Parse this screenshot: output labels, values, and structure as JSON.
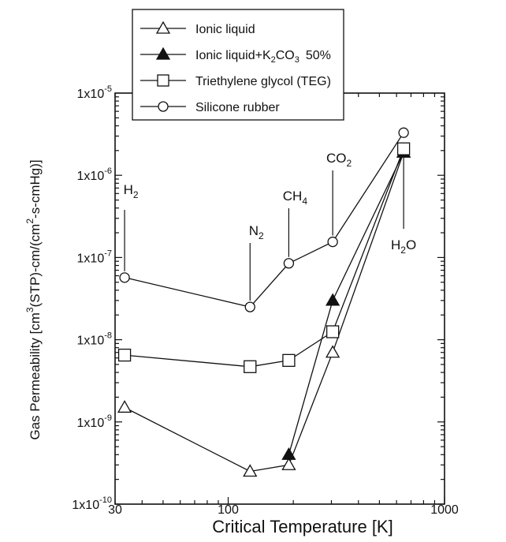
{
  "chart_data": {
    "type": "line",
    "xlabel": "Critical Temperature [K]",
    "ylabel": "Gas Permeability [cm3(STP)-cm/(cm2-s-cmHg)]",
    "x_scale": "log",
    "y_scale": "log",
    "xlim": [
      30,
      1000
    ],
    "ylim": [
      1e-10,
      1e-05
    ],
    "x_ticks": [
      {
        "value": 30,
        "label": "30"
      },
      {
        "value": 100,
        "label": "100"
      },
      {
        "value": 1000,
        "label": "1000"
      }
    ],
    "y_ticks": [
      {
        "value": 1e-10,
        "mant": "1x10",
        "exp": "-10"
      },
      {
        "value": 1e-09,
        "mant": "1x10",
        "exp": "-9"
      },
      {
        "value": 1e-08,
        "mant": "1x10",
        "exp": "-8"
      },
      {
        "value": 1e-07,
        "mant": "1x10",
        "exp": "-7"
      },
      {
        "value": 1e-06,
        "mant": "1x10",
        "exp": "-6"
      },
      {
        "value": 1e-05,
        "mant": "1x10",
        "exp": "-5"
      }
    ],
    "grid": false,
    "legend_position": "top-left",
    "gas_labels": [
      {
        "id": "h2",
        "base": "H",
        "sub": "2",
        "x": 33.2
      },
      {
        "id": "n2",
        "base": "N",
        "sub": "2",
        "x": 126.2
      },
      {
        "id": "ch4",
        "base": "CH",
        "sub": "4",
        "x": 190.6
      },
      {
        "id": "co2",
        "base": "CO",
        "sub": "2",
        "x": 304.2
      },
      {
        "id": "h2o",
        "base": "H",
        "sub": "2",
        "suffix": "O",
        "x": 647.1
      }
    ],
    "series": [
      {
        "name": "Ionic liquid",
        "marker": "triangle-open",
        "x": [
          33.2,
          126.2,
          190.6,
          304.2,
          647.1
        ],
        "y": [
          1.5e-09,
          2.5e-10,
          3e-10,
          7e-09,
          1.9e-06
        ]
      },
      {
        "name": "Ionic liquid+K2CO3 50%",
        "marker": "triangle-filled",
        "x": [
          190.6,
          304.2,
          647.1
        ],
        "y": [
          4e-10,
          3e-08,
          1.9e-06
        ]
      },
      {
        "name": "Triethylene glycol (TEG)",
        "marker": "square-open",
        "x": [
          33.2,
          126.2,
          190.6,
          304.2,
          647.1
        ],
        "y": [
          6.5e-09,
          4.7e-09,
          5.6e-09,
          1.25e-08,
          2.1e-06
        ]
      },
      {
        "name": "Silicone rubber",
        "marker": "circle-open",
        "x": [
          33.2,
          126.2,
          190.6,
          304.2,
          647.1
        ],
        "y": [
          5.7e-08,
          2.5e-08,
          8.5e-08,
          1.55e-07,
          3.3e-06
        ]
      }
    ]
  },
  "legend": {
    "ionic_liquid": "Ionic liquid",
    "ionic_k2co3_prefix": "Ionic liquid+K",
    "ionic_k2co3_sub1": "2",
    "ionic_k2co3_mid": "CO",
    "ionic_k2co3_sub2": "3",
    "ionic_k2co3_suffix": "50%",
    "teg": "Triethylene glycol (TEG)",
    "silicone": "Silicone rubber"
  },
  "ylabel_parts": {
    "a": "Gas Permeability [cm",
    "sup1": "3",
    "b": "(STP)-cm/(cm",
    "sup2": "2",
    "c": "-s-cmHg)]"
  }
}
